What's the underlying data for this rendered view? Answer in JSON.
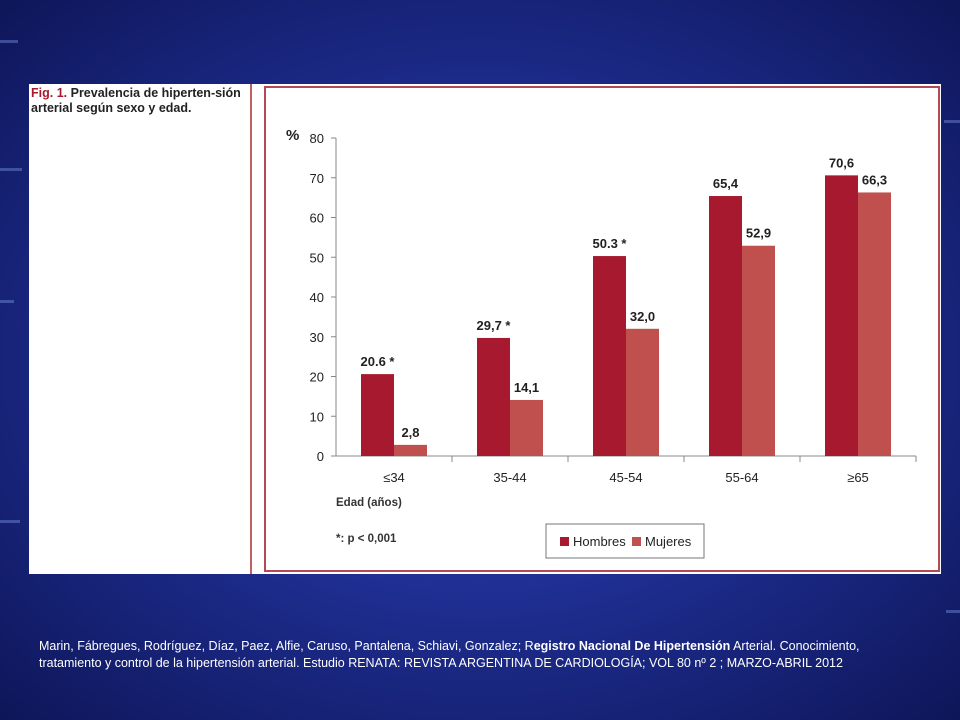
{
  "figure": {
    "caption_label": "Fig. 1.",
    "caption_text": "Prevalencia de hiperten-sión arterial según sexo y edad."
  },
  "chart_data": {
    "type": "bar",
    "categories": [
      "≤34",
      "35-44",
      "45-54",
      "55-64",
      "≥65"
    ],
    "series": [
      {
        "name": "Hombres",
        "values": [
          20.6,
          29.7,
          50.3,
          65.4,
          70.6
        ],
        "labels": [
          "20.6 *",
          "29,7 *",
          "50.3 *",
          "65,4",
          "70,6"
        ],
        "color": "#a6192e"
      },
      {
        "name": "Mujeres",
        "values": [
          2.8,
          14.1,
          32.0,
          52.9,
          66.3
        ],
        "labels": [
          "2,8",
          "14,1",
          "32,0",
          "52,9",
          "66,3"
        ],
        "color": "#c0504d"
      }
    ],
    "ylabel": "%",
    "xlabel": "Edad (años)",
    "ylim": [
      0,
      80
    ],
    "yticks": [
      0,
      10,
      20,
      30,
      40,
      50,
      60,
      70,
      80
    ],
    "footnote": "*: p < 0,001",
    "legend_position": "bottom-right",
    "grid": false
  },
  "citation": {
    "pre": "Marin, Fábregues, Rodríguez, Díaz, Paez, Alfie, Caruso, Pantalena, Schiavi, Gonzalez; R",
    "bold": "egistro Nacional De Hipertensión",
    "post": " Arterial. Conocimiento, tratamiento y control de la hipertensión arterial. Estudio RENATA: REVISTA ARGENTINA DE CARDIOLOGÍA;  VOL 80 nº 2 ; MARZO-ABRIL 2012"
  }
}
